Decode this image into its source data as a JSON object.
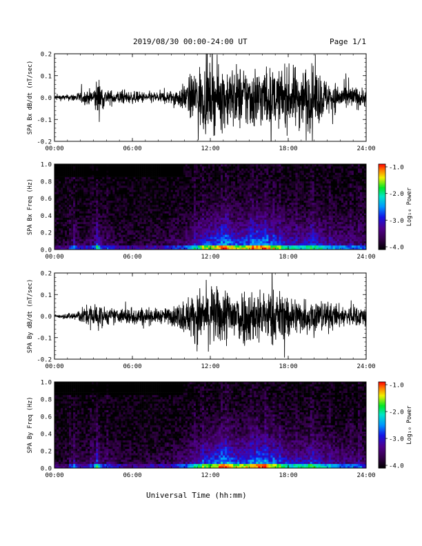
{
  "header": {
    "title": "2019/08/30  00:00-24:00 UT",
    "page": "Page 1/1"
  },
  "footer": {
    "xlabel": "Universal Time (hh:mm)"
  },
  "colorbar": {
    "label": "Log₁₀ Power",
    "ticks": [
      "-1.0",
      "-2.0",
      "-3.0",
      "-4.0"
    ],
    "range": [
      -4.0,
      -1.0
    ]
  },
  "chart_data": [
    {
      "type": "line",
      "ylabel": "SPA Bx dB/dt (nT/sec)",
      "ylim": [
        -0.2,
        0.2
      ],
      "yticks": [
        "0.2",
        "0.1",
        "0.0",
        "-0.1",
        "-0.2"
      ],
      "xlim": [
        "00:00",
        "24:00"
      ],
      "xticks": [
        "00:00",
        "06:00",
        "12:00",
        "18:00",
        "24:00"
      ],
      "envelope": {
        "hours": [
          0,
          1,
          2,
          3,
          3.3,
          4,
          5,
          6,
          7,
          8,
          9,
          10,
          11,
          12,
          13,
          14,
          15,
          16,
          17,
          18,
          19,
          20,
          21,
          22,
          23,
          24
        ],
        "amplitude": [
          0.02,
          0.02,
          0.04,
          0.06,
          0.14,
          0.05,
          0.05,
          0.04,
          0.04,
          0.04,
          0.05,
          0.09,
          0.22,
          0.22,
          0.22,
          0.22,
          0.22,
          0.22,
          0.18,
          0.2,
          0.22,
          0.22,
          0.12,
          0.09,
          0.08,
          0.06
        ]
      }
    },
    {
      "type": "heatmap",
      "ylabel": "SPA Bx Freq (Hz)",
      "ylim": [
        0.0,
        1.0
      ],
      "yticks": [
        "1.0",
        "0.8",
        "0.6",
        "0.4",
        "0.2",
        "0.0"
      ],
      "xlim": [
        "00:00",
        "24:00"
      ],
      "xticks": [
        "00:00",
        "06:00",
        "12:00",
        "18:00",
        "24:00"
      ],
      "zlabel": "Log₁₀ Power",
      "zlim": [
        -4.0,
        -1.0
      ]
    },
    {
      "type": "line",
      "ylabel": "SPA By dB/dt (nT/sec)",
      "ylim": [
        -0.2,
        0.2
      ],
      "yticks": [
        "0.2",
        "0.1",
        "0.0",
        "-0.1",
        "-0.2"
      ],
      "xlim": [
        "00:00",
        "24:00"
      ],
      "xticks": [
        "00:00",
        "06:00",
        "12:00",
        "18:00",
        "24:00"
      ],
      "envelope": {
        "hours": [
          0,
          1,
          2,
          3,
          3.3,
          4,
          5,
          6,
          7,
          8,
          9,
          10,
          11,
          12,
          13,
          14,
          15,
          16,
          17,
          18,
          19,
          20,
          21,
          22,
          23,
          24
        ],
        "amplitude": [
          0.01,
          0.02,
          0.05,
          0.1,
          0.09,
          0.06,
          0.05,
          0.07,
          0.06,
          0.05,
          0.06,
          0.12,
          0.18,
          0.2,
          0.2,
          0.2,
          0.2,
          0.19,
          0.18,
          0.16,
          0.12,
          0.13,
          0.1,
          0.08,
          0.07,
          0.08
        ]
      }
    },
    {
      "type": "heatmap",
      "ylabel": "SPA By Freq (Hz)",
      "ylim": [
        0.0,
        1.0
      ],
      "yticks": [
        "1.0",
        "0.8",
        "0.6",
        "0.4",
        "0.2",
        "0.0"
      ],
      "xlim": [
        "00:00",
        "24:00"
      ],
      "xticks": [
        "00:00",
        "06:00",
        "12:00",
        "18:00",
        "24:00"
      ],
      "zlabel": "Log₁₀ Power",
      "zlim": [
        -4.0,
        -1.0
      ]
    }
  ]
}
